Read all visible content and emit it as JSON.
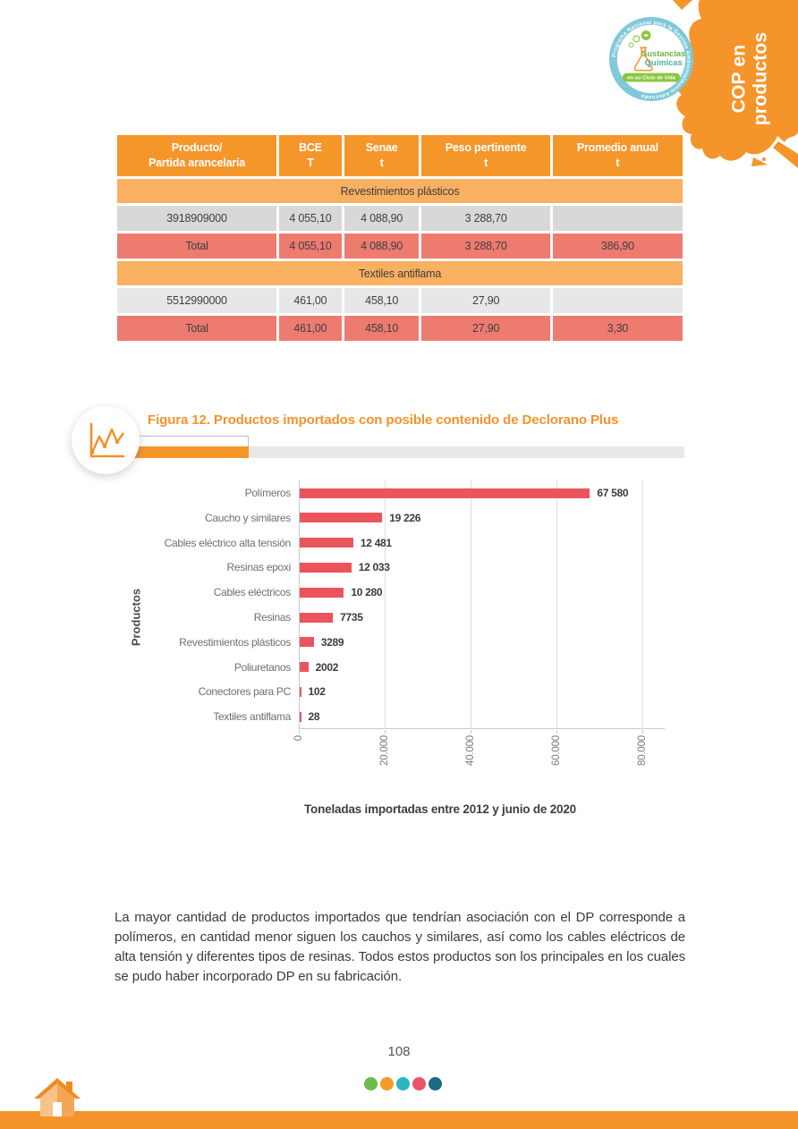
{
  "branding": {
    "corner_label_line1": "COP en",
    "corner_label_line2": "productos",
    "accent_orange": "#F5962B",
    "logo": {
      "ring_text": "Programa Nacional para la Gestión Ambientalmente Adecuada",
      "title_line1": "Sustancias",
      "title_line2": "Químicas",
      "banner": "en su Ciclo de Vida"
    }
  },
  "table": {
    "headers": [
      {
        "l1": "Producto/",
        "l2": "Partida arancelaria"
      },
      {
        "l1": "BCE",
        "l2": "T"
      },
      {
        "l1": "Senae",
        "l2": "t"
      },
      {
        "l1": "Peso pertinente",
        "l2": "t"
      },
      {
        "l1": "Promedio anual",
        "l2": "t"
      }
    ],
    "sections": [
      {
        "title": "Revestimientos plásticos",
        "row": [
          "3918909000",
          "4 055,10",
          "4 088,90",
          "3 288,70",
          ""
        ],
        "total": [
          "Total",
          "4 055,10",
          "4 088,90",
          "3 288,70",
          "386,90"
        ]
      },
      {
        "title": "Textiles antiflama",
        "row": [
          "5512990000",
          "461,00",
          "458,10",
          "27,90",
          ""
        ],
        "total": [
          "Total",
          "461,00",
          "458,10",
          "27,90",
          "3,30"
        ]
      }
    ]
  },
  "figure": {
    "title": "Figura 12. Productos importados con posible contenido de Declorano Plus"
  },
  "chart_data": {
    "type": "bar",
    "orientation": "horizontal",
    "categories": [
      "Polímeros",
      "Caucho y similares",
      "Cables eléctrico alta tensión",
      "Resinas epoxi",
      "Cables eléctricos",
      "Resinas",
      "Revestimientos plásticos",
      "Poliuretanos",
      "Conectores para PC",
      "Textiles antiflama"
    ],
    "values": [
      67580,
      19226,
      12481,
      12033,
      10280,
      7735,
      3289,
      2002,
      102,
      28
    ],
    "value_labels": [
      "67 580",
      "19 226",
      "12 481",
      "12 033",
      "10 280",
      "7735",
      "3289",
      "2002",
      "102",
      "28"
    ],
    "xlabel": "Toneladas importadas entre 2012 y junio de 2020",
    "ylabel": "Productos",
    "xlim": [
      0,
      80000
    ],
    "xticks": [
      "0",
      "20.000",
      "40.000",
      "60.000",
      "80.000"
    ],
    "bar_color": "#EA545D",
    "grid": true,
    "legend": "none"
  },
  "paragraph": "La mayor cantidad de productos importados que tendrían asociación con el DP corresponde a polímeros, en cantidad menor siguen los cauchos y similares, así como los cables eléctricos de alta tensión y diferentes tipos de resinas. Todos estos productos son los principales en los cuales se pudo haber incorporado DP en su fabricación.",
  "footer": {
    "page_number": "108",
    "dot_colors": [
      "#6CBE4C",
      "#F59B26",
      "#2BB5BE",
      "#EE5367",
      "#1A6B80"
    ]
  }
}
